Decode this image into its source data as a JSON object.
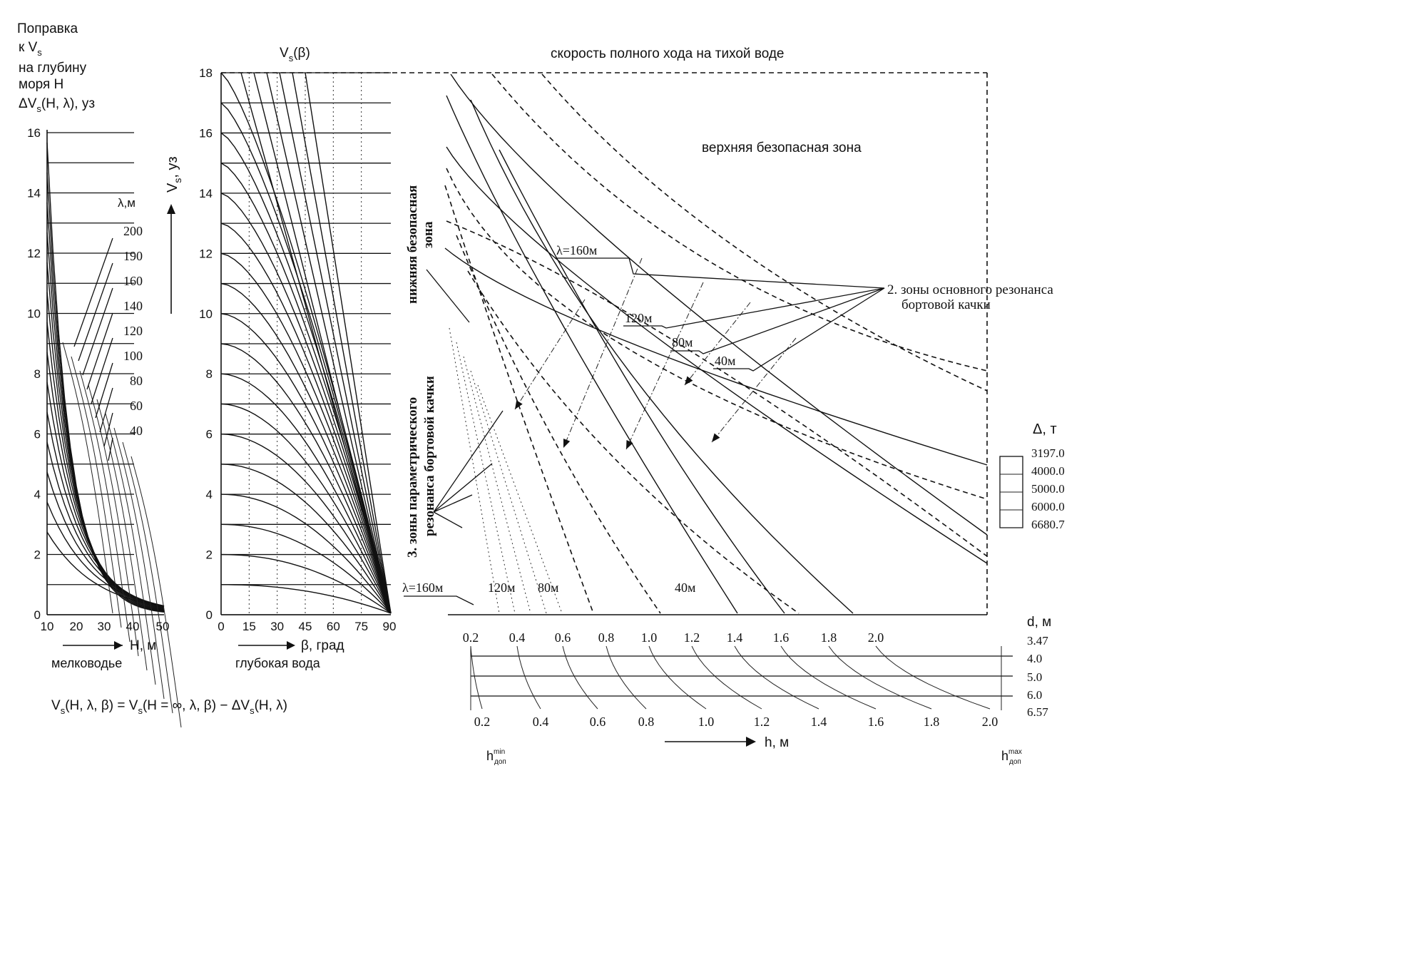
{
  "panel_depth": {
    "title_lines": [
      "Поправка",
      "к V",
      "на глубину",
      "моря Н",
      "ΔV",
      "(Н, λ), уз"
    ],
    "title_sub": [
      "s",
      "s"
    ],
    "y_ticks": [
      "0",
      "2",
      "4",
      "6",
      "8",
      "10",
      "12",
      "14",
      "16"
    ],
    "x_ticks": [
      "10",
      "20",
      "30",
      "40",
      "50"
    ],
    "x_label": "Н, м",
    "region_label": "мелководье",
    "lambda_header": "λ,м",
    "lambda_values": [
      "200",
      "190",
      "160",
      "140",
      "120",
      "100",
      "80",
      "60",
      "40"
    ]
  },
  "panel_heading": {
    "curve_label": "V",
    "curve_label_sub": "s",
    "curve_label_tail": "(β)",
    "y_axis_label": "V",
    "y_axis_label_sub": "s",
    "y_axis_label_tail": ", уз",
    "y_ticks": [
      "0",
      "2",
      "4",
      "6",
      "8",
      "10",
      "12",
      "14",
      "16",
      "18"
    ],
    "x_ticks": [
      "0",
      "15",
      "30",
      "45",
      "60",
      "75",
      "90"
    ],
    "x_label": "β, град",
    "region_label": "глубокая вода"
  },
  "formula": "V (Н, λ, β)  = V (Н = ∞, λ, β)  − ΔV (Н, λ)",
  "formula_parts": [
    "V",
    "s",
    "(Н, λ, β)  = V",
    "s",
    "(Н = ∞, λ, β)  − ΔV",
    "s",
    "(Н, λ)"
  ],
  "panel_main": {
    "top_label": "скорость полного хода на тихой воде",
    "upper_zone": "верхняя безопасная зона",
    "lower_zone_lines": [
      "нижняя безопасная",
      "зона"
    ],
    "param_zone_lines": [
      "3. зоны параметрического",
      "резонанса бортовой качки"
    ],
    "main_zone_lines": [
      "2. зоны основного резонанса",
      "бортовой качки"
    ],
    "lambda_labels": [
      "λ=160м",
      "120м",
      "80м",
      "40м"
    ],
    "bottom_lambda_labels": [
      "λ=160м",
      "120м",
      "80м",
      "40м"
    ],
    "displacement_header": "Δ, т",
    "displacement_values": [
      "3197.0",
      "4000.0",
      "5000.0",
      "6000.0",
      "6680.7"
    ]
  },
  "panel_wave": {
    "top_ticks": [
      "0.2",
      "0.4",
      "0.6",
      "0.8",
      "1.0",
      "1.2",
      "1.4",
      "1.6",
      "1.8",
      "2.0"
    ],
    "bottom_ticks": [
      "0.2",
      "0.4",
      "0.6",
      "0.8",
      "1.0",
      "1.2",
      "1.4",
      "1.6",
      "1.8",
      "2.0"
    ],
    "draft_header": "d, м",
    "draft_values": [
      "3.47",
      "4.0",
      "5.0",
      "6.0",
      "6.57"
    ],
    "x_label": "h, м",
    "h_min_label": "h",
    "h_min_sup": "min",
    "h_min_sub": "доп",
    "h_max_label": "h",
    "h_max_sup": "max",
    "h_max_sub": "доп"
  }
}
